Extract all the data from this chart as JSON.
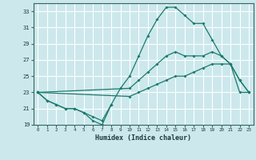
{
  "title": "",
  "xlabel": "Humidex (Indice chaleur)",
  "ylabel": "",
  "bg_color": "#cce8ec",
  "grid_color": "#ffffff",
  "line_color": "#1a7a6e",
  "xlim": [
    -0.5,
    23.5
  ],
  "ylim": [
    19,
    34
  ],
  "xticks": [
    0,
    1,
    2,
    3,
    4,
    5,
    6,
    7,
    8,
    9,
    10,
    11,
    12,
    13,
    14,
    15,
    16,
    17,
    18,
    19,
    20,
    21,
    22,
    23
  ],
  "yticks": [
    19,
    21,
    23,
    25,
    27,
    29,
    31,
    33
  ],
  "series": [
    {
      "x": [
        0,
        1,
        2,
        3,
        4,
        5,
        6,
        7,
        8
      ],
      "y": [
        23,
        22,
        21.5,
        21,
        21,
        20.5,
        20,
        19.5,
        21.5
      ]
    },
    {
      "x": [
        0,
        1,
        2,
        3,
        4,
        5,
        6,
        7,
        8,
        9,
        10,
        11,
        12,
        13,
        14,
        15,
        16,
        17,
        18,
        19,
        20,
        21,
        22,
        23
      ],
      "y": [
        23,
        22,
        21.5,
        21,
        21,
        20.5,
        19.5,
        19,
        21.5,
        23.5,
        25,
        27.5,
        30,
        32,
        33.5,
        33.5,
        32.5,
        31.5,
        31.5,
        29.5,
        27.5,
        26.5,
        24.5,
        23
      ]
    },
    {
      "x": [
        0,
        10,
        11,
        12,
        13,
        14,
        15,
        16,
        17,
        18,
        19,
        20,
        21,
        22,
        23
      ],
      "y": [
        23,
        23.5,
        24.5,
        25.5,
        26.5,
        27.5,
        28.0,
        27.5,
        27.5,
        27.5,
        28.0,
        27.5,
        26.5,
        24.5,
        23.0
      ]
    },
    {
      "x": [
        0,
        10,
        11,
        12,
        13,
        14,
        15,
        16,
        17,
        18,
        19,
        20,
        21,
        22,
        23
      ],
      "y": [
        23,
        22.5,
        23.0,
        23.5,
        24.0,
        24.5,
        25.0,
        25.0,
        25.5,
        26.0,
        26.5,
        26.5,
        26.5,
        23.0,
        23.0
      ]
    }
  ]
}
